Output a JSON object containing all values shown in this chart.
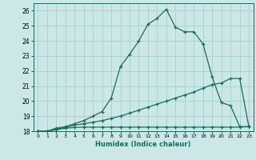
{
  "xlabel": "Humidex (Indice chaleur)",
  "background_color": "#cce8e6",
  "line_color": "#1a6b5e",
  "grid_color": "#aad4d0",
  "xlim": [
    -0.5,
    23.5
  ],
  "ylim": [
    18,
    26.5
  ],
  "xticks": [
    0,
    1,
    2,
    3,
    4,
    5,
    6,
    7,
    8,
    9,
    10,
    11,
    12,
    13,
    14,
    15,
    16,
    17,
    18,
    19,
    20,
    21,
    22,
    23
  ],
  "yticks": [
    18,
    19,
    20,
    21,
    22,
    23,
    24,
    25,
    26
  ],
  "line1_x": [
    0,
    1,
    2,
    3,
    4,
    5,
    6,
    7,
    8,
    9,
    10,
    11,
    12,
    13,
    14,
    15,
    16,
    17,
    18,
    19,
    20,
    21,
    22,
    23
  ],
  "line1_y": [
    18.0,
    18.0,
    18.2,
    18.3,
    18.5,
    18.7,
    19.0,
    19.3,
    20.2,
    22.3,
    23.1,
    24.0,
    25.1,
    25.5,
    26.1,
    24.9,
    24.6,
    24.6,
    23.8,
    21.6,
    19.9,
    19.7,
    18.3,
    18.3
  ],
  "line2_x": [
    0,
    1,
    2,
    3,
    4,
    5,
    6,
    7,
    8,
    9,
    10,
    11,
    12,
    13,
    14,
    15,
    16,
    17,
    18,
    19,
    20,
    21,
    22,
    23
  ],
  "line2_y": [
    18.0,
    18.0,
    18.15,
    18.25,
    18.4,
    18.5,
    18.6,
    18.7,
    18.85,
    19.0,
    19.2,
    19.4,
    19.6,
    19.8,
    20.0,
    20.2,
    20.4,
    20.6,
    20.85,
    21.1,
    21.2,
    21.5,
    21.5,
    18.3
  ],
  "line3_x": [
    0,
    1,
    2,
    3,
    4,
    5,
    6,
    7,
    8,
    9,
    10,
    11,
    12,
    13,
    14,
    15,
    16,
    17,
    18,
    19,
    20,
    21,
    22,
    23
  ],
  "line3_y": [
    18.0,
    18.0,
    18.1,
    18.2,
    18.25,
    18.27,
    18.27,
    18.27,
    18.27,
    18.27,
    18.27,
    18.27,
    18.27,
    18.27,
    18.27,
    18.27,
    18.27,
    18.27,
    18.27,
    18.27,
    18.27,
    18.27,
    18.27,
    18.3
  ]
}
